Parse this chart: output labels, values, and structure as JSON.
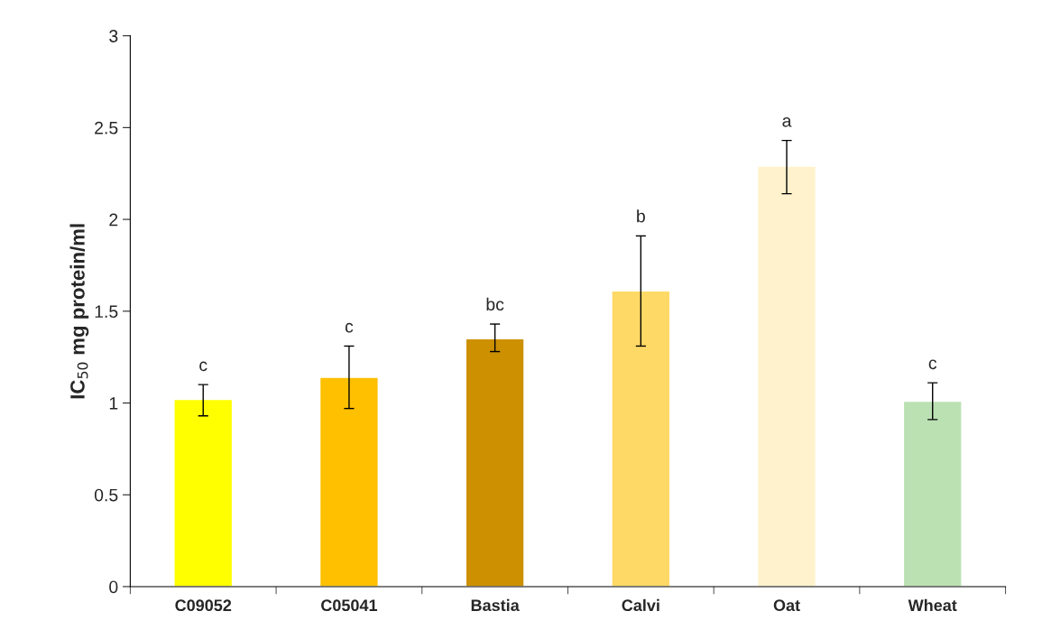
{
  "chart_data": {
    "type": "bar",
    "ylabel": "IC$_{50}$ mg protein/ml",
    "categories": [
      "C09052",
      "C05041",
      "Bastia",
      "Calvi",
      "Oat",
      "Wheat"
    ],
    "values": [
      1.02,
      1.14,
      1.35,
      1.61,
      2.29,
      1.01
    ],
    "colors": [
      "#ffff00",
      "#ffc000",
      "#cc9000",
      "#ffd966",
      "#fff2cc",
      "#bbe1b3"
    ],
    "errors": [
      [
        0.93,
        1.1
      ],
      [
        0.97,
        1.31
      ],
      [
        1.28,
        1.43
      ],
      [
        1.31,
        1.91
      ],
      [
        2.14,
        2.43
      ],
      [
        0.91,
        1.11
      ]
    ],
    "ylim": [
      0,
      3
    ],
    "yticks": [
      0,
      0.5,
      1,
      1.5,
      2,
      2.5,
      3
    ],
    "annotations": [
      {
        "text": "c",
        "x": "C09052",
        "y": 1.1
      },
      {
        "text": "c",
        "x": "C05041",
        "y": 1.31
      },
      {
        "text": "bc",
        "x": "Bastia",
        "y": 1.43
      },
      {
        "text": "b",
        "x": "Calvi",
        "y": 1.91
      },
      {
        "text": "a",
        "x": "Oat",
        "y": 2.43
      },
      {
        "text": "c",
        "x": "Wheat",
        "y": 1.11
      }
    ],
    "grid": false
  }
}
